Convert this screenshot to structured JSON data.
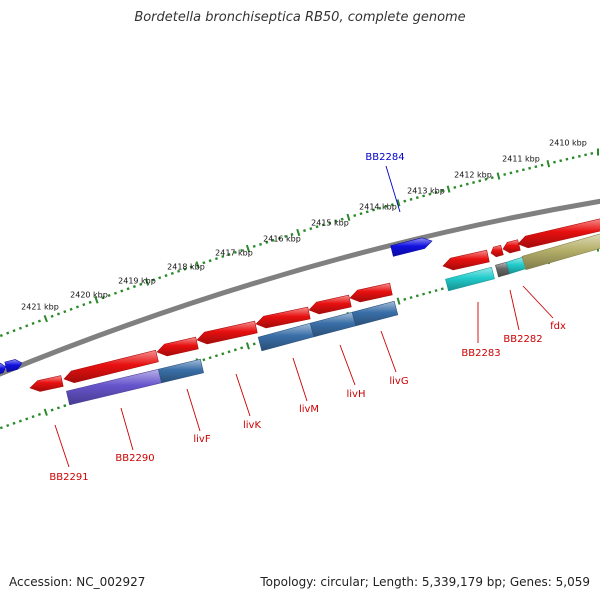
{
  "title": "Bordetella bronchiseptica RB50, complete genome",
  "accession": "Accession: NC_002927",
  "stats": "Topology: circular; Length: 5,339,179 bp; Genes: 5,059",
  "kbp_labels": [
    "2410 kbp",
    "2411 kbp",
    "2412 kbp",
    "2413 kbp",
    "2414 kbp",
    "2415 kbp",
    "2416 kbp",
    "2417 kbp",
    "2418 kbp",
    "2419 kbp",
    "2420 kbp",
    "2421 kbp"
  ],
  "gene_labels": [
    "BB2284",
    "BB2283",
    "BB2282",
    "fdx",
    "livG",
    "livH",
    "livM",
    "livK",
    "livF",
    "BB2290",
    "BB2291"
  ],
  "colors": {
    "backbone": "#808080",
    "forward_gene": "#1010e0",
    "reverse_gene": "#e81010",
    "operon_blue": "#3a6fa8",
    "operon_purple": "#6655cc",
    "operon_cyan": "#22cccc",
    "operon_olive": "#b5b06a",
    "tick": "#2a8a2a",
    "gene_label_red": "#cc0000",
    "gene_label_blue": "#0000cc",
    "kbp_text": "#111111"
  }
}
